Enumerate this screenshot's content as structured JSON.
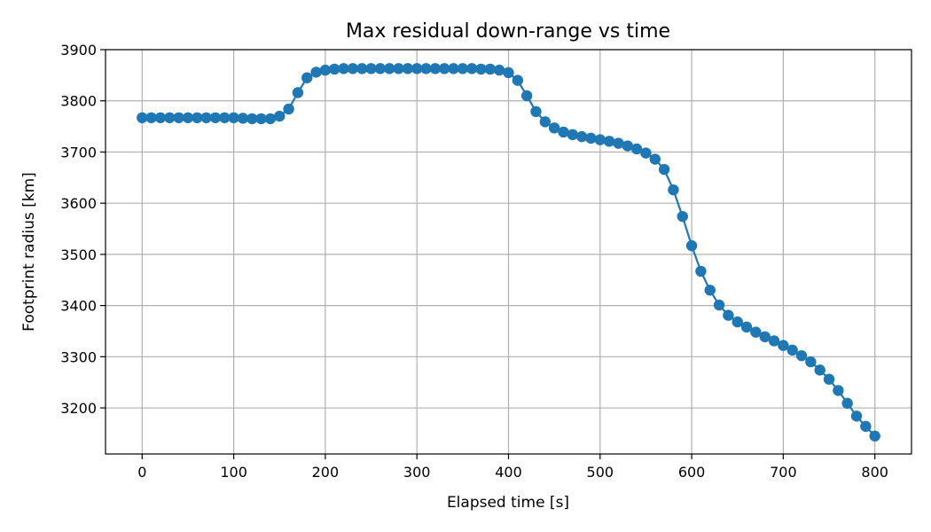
{
  "chart_data": {
    "type": "line",
    "title": "Max residual down-range vs time",
    "xlabel": "Elapsed time [s]",
    "ylabel": "Footprint radius [km]",
    "xlim": [
      -40,
      840
    ],
    "ylim": [
      3110,
      3900
    ],
    "xticks": [
      0,
      100,
      200,
      300,
      400,
      500,
      600,
      700,
      800
    ],
    "yticks": [
      3200,
      3300,
      3400,
      3500,
      3600,
      3700,
      3800,
      3900
    ],
    "grid": true,
    "series": [
      {
        "color": "#1f77b4",
        "marker": "circle",
        "x": [
          0,
          10,
          20,
          30,
          40,
          50,
          60,
          70,
          80,
          90,
          100,
          110,
          120,
          130,
          140,
          150,
          160,
          170,
          180,
          190,
          200,
          210,
          220,
          230,
          240,
          250,
          260,
          270,
          280,
          290,
          300,
          310,
          320,
          330,
          340,
          350,
          360,
          370,
          380,
          390,
          400,
          410,
          420,
          430,
          440,
          450,
          460,
          470,
          480,
          490,
          500,
          510,
          520,
          530,
          540,
          550,
          560,
          570,
          580,
          590,
          600,
          610,
          620,
          630,
          640,
          650,
          660,
          670,
          680,
          690,
          700,
          710,
          720,
          730,
          740,
          750,
          760,
          770,
          780,
          790,
          800
        ],
        "y": [
          3767,
          3767,
          3767,
          3767,
          3767,
          3767,
          3767,
          3767,
          3767,
          3767,
          3767,
          3766,
          3765,
          3765,
          3765,
          3770,
          3784,
          3816,
          3845,
          3856,
          3860,
          3862,
          3863,
          3863,
          3863,
          3863,
          3863,
          3863,
          3863,
          3863,
          3863,
          3863,
          3863,
          3863,
          3863,
          3863,
          3863,
          3862,
          3862,
          3860,
          3855,
          3840,
          3810,
          3779,
          3759,
          3747,
          3739,
          3734,
          3730,
          3727,
          3724,
          3721,
          3717,
          3712,
          3706,
          3698,
          3686,
          3666,
          3626,
          3574,
          3517,
          3467,
          3430,
          3401,
          3381,
          3368,
          3358,
          3348,
          3339,
          3331,
          3322,
          3313,
          3302,
          3290,
          3274,
          3256,
          3234,
          3209,
          3184,
          3164,
          3145
        ]
      }
    ]
  }
}
